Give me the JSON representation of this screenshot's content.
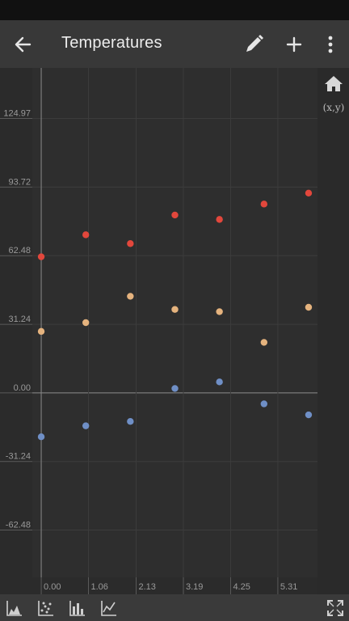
{
  "app_bar": {
    "title": "Temperatures",
    "icons": [
      "arrow-back-icon",
      "pencil-icon",
      "plus-icon",
      "more-vert-icon"
    ]
  },
  "side_panel": {
    "icons": [
      "home-icon"
    ],
    "xy_label": "(x,y)"
  },
  "bottom_toolbar": {
    "icons": [
      "area-chart-icon",
      "scatter-chart-icon",
      "bar-chart-icon",
      "line-chart-icon",
      "fullscreen-icon"
    ]
  },
  "colors": {
    "background": "#2e2e2e",
    "series_high": "#e2473c",
    "series_mid": "#e5b37e",
    "series_low": "#6f8fc6"
  },
  "chart_data": {
    "type": "scatter",
    "x_ticks": [
      "0.00",
      "1.06",
      "2.13",
      "3.19",
      "4.25",
      "5.31"
    ],
    "y_ticks": [
      "124.97",
      "93.72",
      "62.48",
      "31.24",
      "0.00",
      "-31.24",
      "-62.48"
    ],
    "xlim": [
      -0.2,
      6.2
    ],
    "ylim": [
      -84,
      148
    ],
    "grid": true,
    "series": [
      {
        "color": "#e2473c",
        "x": [
          0,
          1,
          2,
          3,
          4,
          5,
          6
        ],
        "y": [
          62,
          72,
          68,
          81,
          79,
          86,
          91
        ]
      },
      {
        "color": "#e5b37e",
        "x": [
          0,
          1,
          2,
          3,
          4,
          5,
          6
        ],
        "y": [
          28,
          32,
          44,
          38,
          37,
          23,
          39
        ]
      },
      {
        "color": "#6f8fc6",
        "x": [
          0,
          1,
          2,
          3,
          4,
          5,
          6
        ],
        "y": [
          -20,
          -15,
          -13,
          2,
          5,
          -5,
          -10
        ]
      }
    ]
  }
}
